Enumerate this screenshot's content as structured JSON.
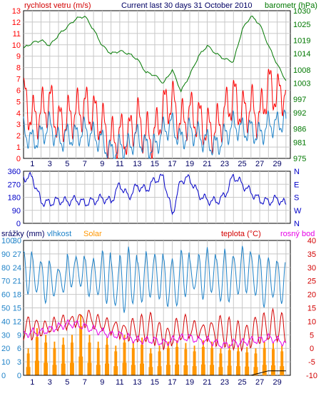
{
  "title": "Current last 30 days 31 October 2010",
  "colors": {
    "background": "#ffffff",
    "grid": "#c8c8c8",
    "wind_gust": "#ff0000",
    "wind_speed": "#1e82c8",
    "pressure": "#007800",
    "wind_dir": "#0000c8",
    "humidity": "#1e82c8",
    "solar": "#ff9600",
    "temperature": "#d20000",
    "dewpoint": "#e600e6",
    "rain": "#000000",
    "day_tick": "#000064"
  },
  "icons": {},
  "chart_data": [
    {
      "type": "line",
      "labels": {
        "left": "rychlost vetru (m/s)",
        "right": "barometr (hPa)"
      },
      "x_tick_labels": [
        "1",
        "3",
        "5",
        "7",
        "9",
        "11",
        "13",
        "15",
        "17",
        "19",
        "21",
        "23",
        "25",
        "27",
        "29"
      ],
      "x": [
        0,
        1,
        2,
        3,
        4,
        5,
        6,
        7,
        8,
        9,
        10,
        11,
        12,
        13,
        14,
        15,
        16,
        17,
        18,
        19,
        20,
        21,
        22,
        23,
        24,
        25,
        26,
        27,
        28,
        29,
        30
      ],
      "x_range": [
        0,
        30.5
      ],
      "y_left": {
        "ticks": [
          0,
          1,
          2,
          3,
          4,
          5,
          6,
          7,
          8,
          9,
          10,
          11,
          12,
          13
        ],
        "range": [
          0,
          13
        ]
      },
      "y_right": {
        "ticks": [
          975,
          981,
          986,
          992,
          997,
          1003,
          1008,
          1014,
          1019,
          1025,
          1030
        ],
        "range": [
          975,
          1030
        ]
      },
      "grid": true,
      "series": [
        {
          "key": "gust",
          "axis": "left",
          "values": [
            5.5,
            3.5,
            4.0,
            5.0,
            3.0,
            3.5,
            4.0,
            4.5,
            4.0,
            3.0,
            1.5,
            2.0,
            2.0,
            3.5,
            2.0,
            2.0,
            4.5,
            5.0,
            3.0,
            4.0,
            3.5,
            2.5,
            2.5,
            4.0,
            5.5,
            4.0,
            4.5,
            3.5,
            6.5,
            5.5,
            6.0
          ]
        },
        {
          "key": "speed",
          "axis": "left",
          "values": [
            2.5,
            1.5,
            2.0,
            3.0,
            1.5,
            2.0,
            2.0,
            2.5,
            2.0,
            1.5,
            0.5,
            1.0,
            1.0,
            2.0,
            1.0,
            1.0,
            2.5,
            3.0,
            1.5,
            2.5,
            2.0,
            1.5,
            1.0,
            2.0,
            3.0,
            2.5,
            2.5,
            2.0,
            3.0,
            3.0,
            3.5
          ]
        },
        {
          "key": "pressure",
          "axis": "right",
          "values": [
            1016,
            1018,
            1019,
            1017,
            1021,
            1024,
            1027,
            1028,
            1023,
            1017,
            1014,
            1015,
            1014,
            1012,
            1007,
            1006,
            1003,
            1008,
            1000,
            1006,
            1013,
            1017,
            1014,
            1012,
            1011,
            1023,
            1028,
            1025,
            1017,
            1010,
            1004
          ]
        }
      ]
    },
    {
      "type": "scatter",
      "labels": {
        "right": [
          "N",
          "W",
          "S",
          "E",
          "N"
        ]
      },
      "x_range": [
        0,
        30.5
      ],
      "y_left": {
        "ticks": [
          0,
          90,
          180,
          270,
          360
        ],
        "range": [
          0,
          360
        ]
      },
      "grid": true,
      "series": [
        {
          "key": "wind_direction",
          "values": [
            315,
            320,
            150,
            140,
            160,
            150,
            165,
            140,
            155,
            175,
            150,
            270,
            180,
            260,
            230,
            300,
            320,
            60,
            300,
            310,
            200,
            160,
            150,
            190,
            330,
            270,
            215,
            160,
            150,
            170,
            130
          ]
        }
      ]
    },
    {
      "type": "line",
      "labels": {
        "rain": "srážky (mm)",
        "humidity": "vlhkost",
        "solar": "Solar",
        "temp": "teplota (°C)",
        "dew": "rosný bod"
      },
      "x_tick_labels": [
        "1",
        "3",
        "5",
        "7",
        "9",
        "11",
        "13",
        "15",
        "17",
        "19",
        "21",
        "23",
        "25",
        "27",
        "29"
      ],
      "x_range": [
        0,
        30.5
      ],
      "y_left_humidity": {
        "ticks": [
          0,
          10,
          20,
          30,
          40,
          50,
          60,
          70,
          80,
          90,
          100
        ],
        "range": [
          0,
          100
        ]
      },
      "y_left_rain": {
        "ticks": [
          0,
          3,
          6,
          9,
          12,
          15,
          18,
          21,
          24,
          27,
          30
        ],
        "range": [
          0,
          30
        ]
      },
      "y_right": {
        "ticks": [
          -10,
          -5,
          0,
          5,
          10,
          15,
          20,
          25,
          30,
          35,
          40
        ],
        "range": [
          -10,
          40
        ]
      },
      "grid": true,
      "series": [
        {
          "key": "humidity_max",
          "values": [
            92,
            88,
            85,
            82,
            80,
            88,
            90,
            85,
            88,
            92,
            85,
            90,
            94,
            86,
            90,
            92,
            85,
            88,
            92,
            86,
            90,
            94,
            88,
            92,
            90,
            94,
            92,
            86,
            88,
            84,
            82
          ]
        },
        {
          "key": "humidity_min",
          "values": [
            62,
            60,
            55,
            58,
            62,
            66,
            65,
            60,
            58,
            55,
            50,
            48,
            52,
            55,
            58,
            56,
            52,
            50,
            60,
            62,
            58,
            60,
            56,
            54,
            60,
            62,
            58,
            52,
            56,
            55,
            58
          ]
        },
        {
          "key": "temperature_max",
          "values": [
            12,
            11,
            10,
            11,
            12,
            12,
            13,
            14,
            12,
            11,
            10,
            9,
            11,
            12,
            13,
            10,
            8,
            11,
            12,
            10,
            9,
            10,
            12,
            11,
            10,
            9,
            12,
            13,
            14,
            13,
            11
          ]
        },
        {
          "key": "temperature_min",
          "values": [
            3,
            4,
            5,
            6,
            7,
            8,
            9,
            8,
            7,
            6,
            5,
            4,
            3,
            2,
            2,
            1,
            0,
            2,
            3,
            4,
            4,
            3,
            1,
            0,
            -1,
            0,
            1,
            2,
            3,
            2,
            1
          ]
        },
        {
          "key": "dewpoint",
          "values": [
            5,
            6,
            6,
            7,
            8,
            9,
            9,
            8,
            7,
            6,
            5,
            5,
            4,
            3,
            3,
            3,
            2,
            3,
            4,
            4,
            3,
            3,
            2,
            1,
            2,
            2,
            3,
            3,
            4,
            3,
            2
          ]
        },
        {
          "key": "solar",
          "values": [
            0.2,
            0.35,
            0.3,
            0.25,
            0.28,
            0.3,
            0.45,
            0.3,
            0.25,
            0.28,
            0.22,
            0.3,
            0.25,
            0.28,
            0.2,
            0.22,
            0.25,
            0.26,
            0.24,
            0.22,
            0.26,
            0.25,
            0.2,
            0.23,
            0.22,
            0.21,
            0.2,
            0.25,
            0.24,
            0.22,
            0.2
          ]
        },
        {
          "key": "rain_cumulative",
          "values": [
            0,
            0,
            0,
            0,
            0,
            0,
            0,
            0,
            0,
            0,
            0,
            0,
            0,
            0,
            0,
            0,
            0,
            0,
            0,
            0,
            0,
            0,
            0,
            0,
            0,
            0,
            0,
            0.5,
            1.0,
            1.0,
            1.0
          ]
        }
      ]
    }
  ]
}
